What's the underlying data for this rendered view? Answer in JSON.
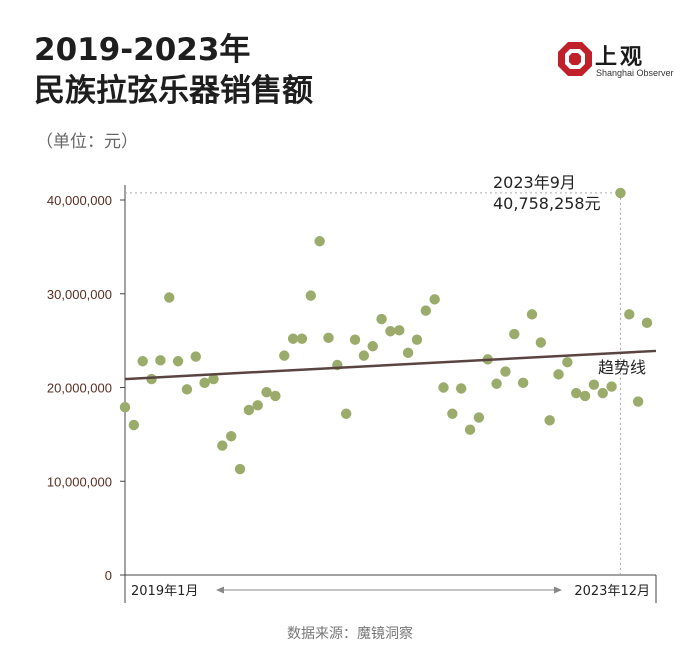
{
  "header": {
    "title_line1": "2019-2023年",
    "title_line2": "民族拉弦乐器销售额",
    "unit": "（单位：元）"
  },
  "logo": {
    "name_cn": "上观",
    "name_en": "Shanghai Observer",
    "color": "#c0202a"
  },
  "footer": {
    "source": "数据来源：魔镜洞察"
  },
  "colors": {
    "point": "#9aab6c",
    "trend": "#5a4442",
    "axis": "#444444",
    "reference": "#aaaaaa"
  },
  "chart_data": {
    "type": "scatter",
    "title": "2019-2023年民族拉弦乐器销售额",
    "ylabel": "（单位：元）",
    "ylim": [
      0,
      42000000
    ],
    "yticks": [
      0,
      10000000,
      20000000,
      30000000,
      40000000
    ],
    "ytick_labels": [
      "0",
      "10,000,000",
      "20,000,000",
      "30,000,000",
      "40,000,000"
    ],
    "x_start_label": "2019年1月",
    "x_end_label": "2023年12月",
    "x_arrow": "◄────────────────────────────────────────────────────►",
    "n_points": 60,
    "values": [
      17900000,
      16000000,
      22800000,
      20900000,
      22900000,
      29600000,
      22800000,
      19800000,
      23300000,
      20500000,
      20900000,
      13800000,
      14800000,
      11300000,
      17600000,
      18100000,
      19500000,
      19100000,
      23400000,
      25200000,
      25200000,
      29800000,
      35600000,
      25300000,
      22400000,
      17200000,
      25100000,
      23400000,
      24400000,
      27300000,
      26000000,
      26100000,
      23700000,
      25100000,
      28200000,
      29400000,
      20000000,
      17200000,
      19900000,
      15500000,
      16800000,
      23000000,
      20400000,
      21700000,
      25700000,
      20500000,
      27800000,
      24800000,
      16500000,
      21400000,
      22700000,
      19400000,
      19100000,
      20300000,
      19400000,
      20100000,
      40758258,
      27800000,
      18500000,
      26900000
    ],
    "trend": {
      "label": "趋势线",
      "start": 20900000,
      "end": 23900000
    },
    "annotation": {
      "line1": "2023年9月",
      "line2": "40,758,258元",
      "point_index": 56,
      "value": 40758258
    },
    "grid": false
  }
}
